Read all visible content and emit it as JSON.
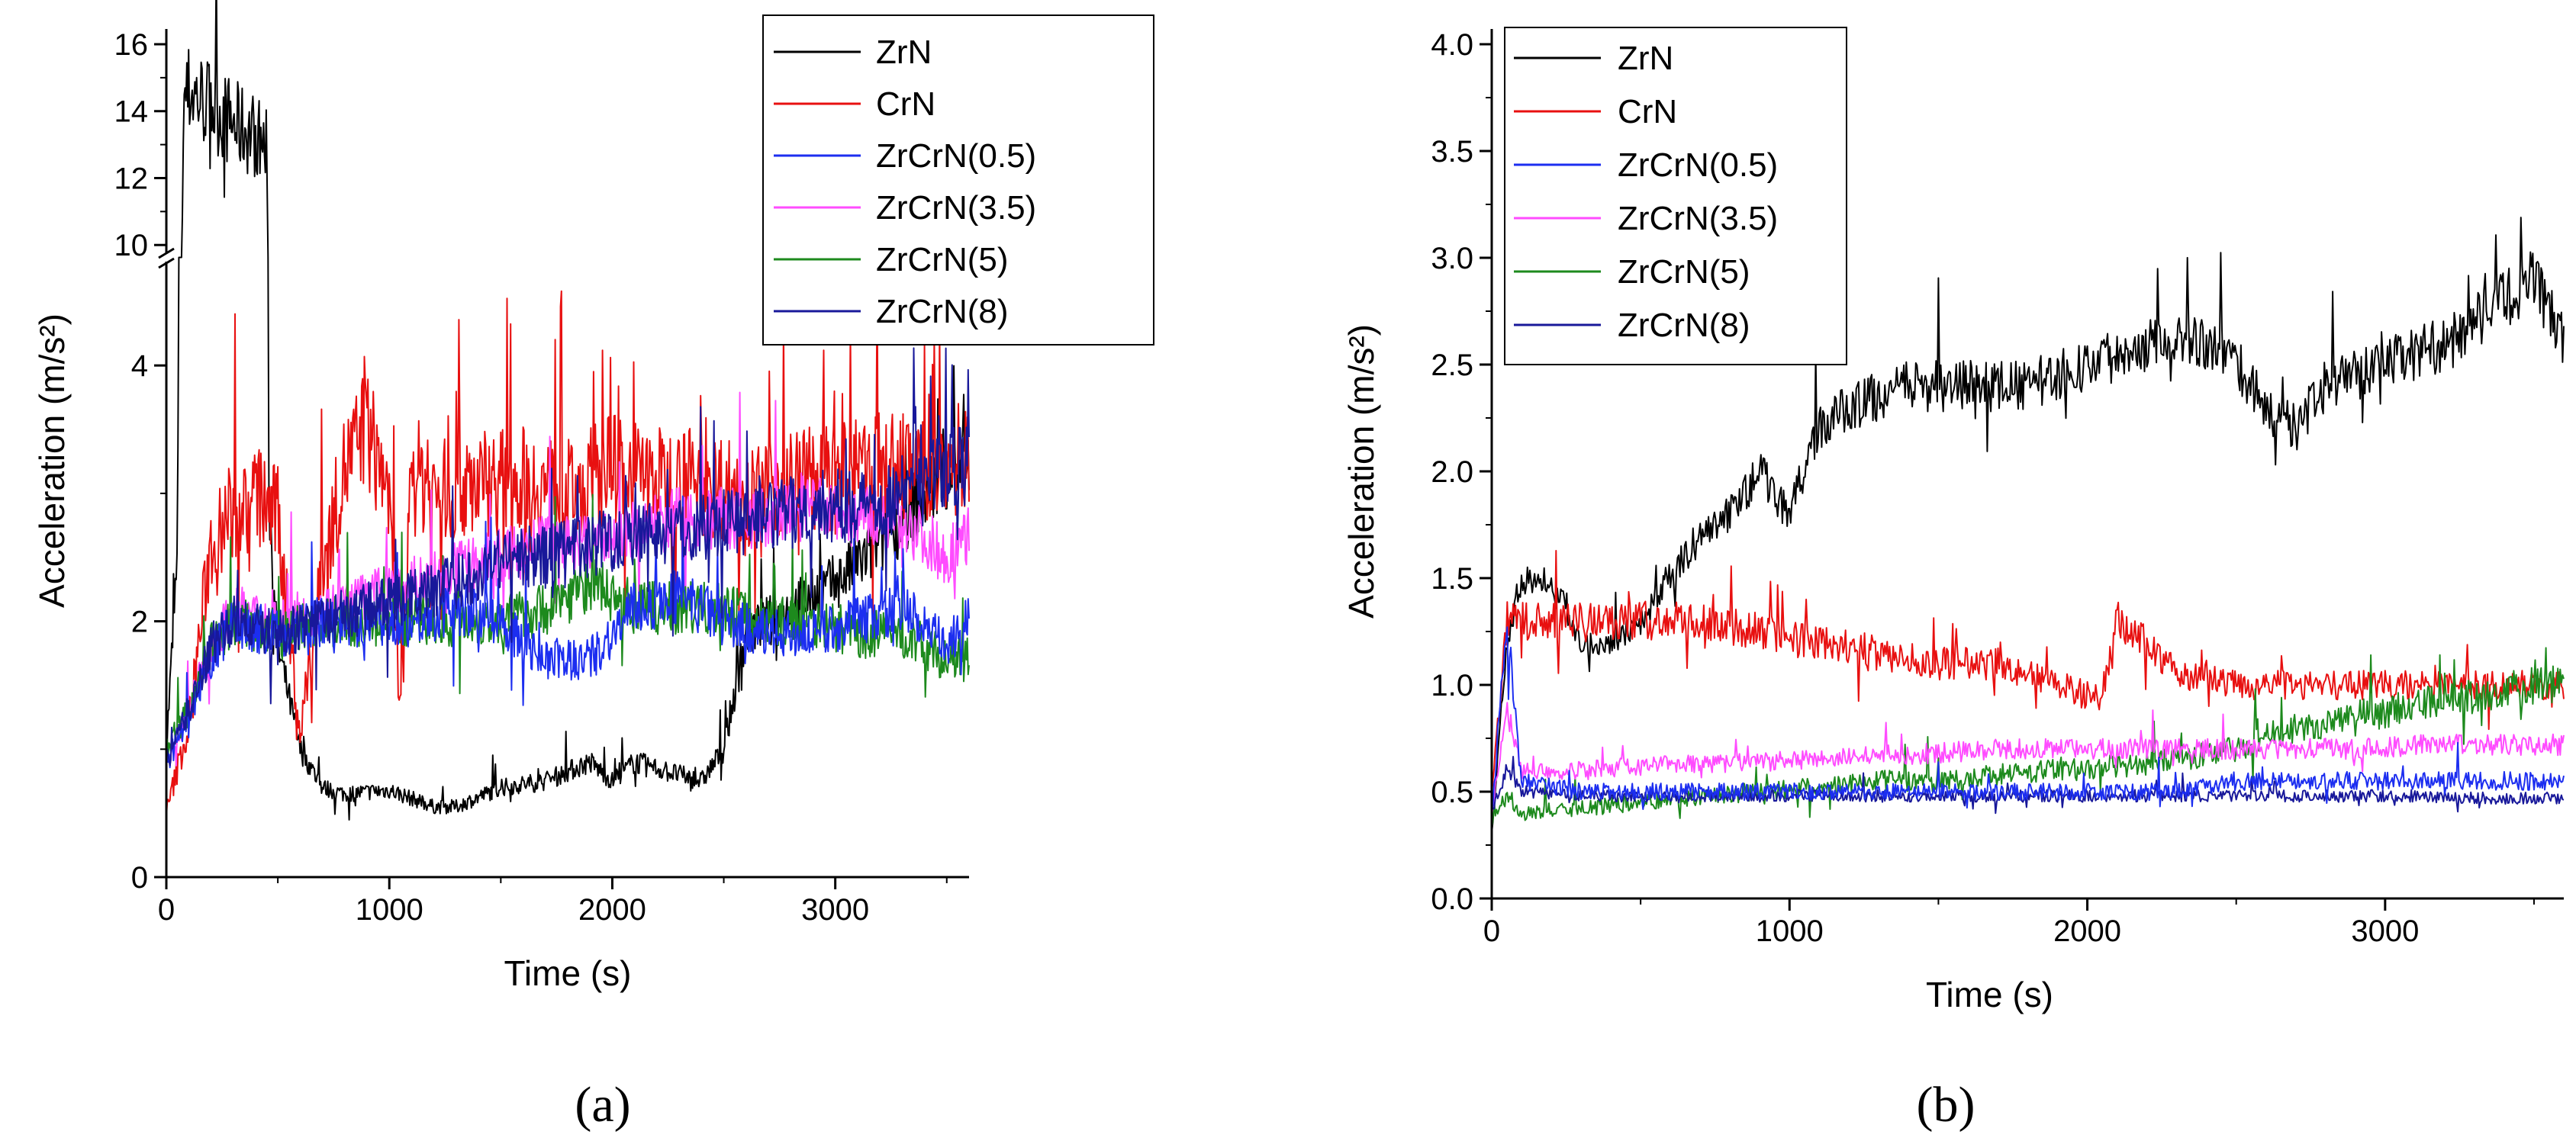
{
  "chart_data": [
    {
      "type": "line",
      "panel_label": "(a)",
      "xlabel": "Time (s)",
      "ylabel": "Acceleration (m/s²)",
      "xlim": [
        0,
        3600
      ],
      "ylim": [
        0,
        16
      ],
      "axis_break": [
        4.8,
        9.8
      ],
      "yticks": [
        0,
        2,
        4,
        10,
        12,
        14,
        16
      ],
      "ytick_labels": [
        "0",
        "2",
        "4",
        "10",
        "12",
        "14",
        "16"
      ],
      "xticks": [
        0,
        1000,
        2000,
        3000
      ],
      "xtick_labels": [
        "0",
        "1000",
        "2000",
        "3000"
      ],
      "legend_position": "top-right",
      "series": [
        {
          "name": "ZrN",
          "color": "#000000",
          "x": [
            0,
            50,
            80,
            100,
            200,
            300,
            400,
            450,
            460,
            500,
            600,
            700,
            800,
            1000,
            1200,
            1300,
            1500,
            1700,
            1900,
            2000,
            2100,
            2200,
            2300,
            2400,
            2500,
            2600,
            2800,
            3000,
            3200,
            3400,
            3600
          ],
          "y": [
            1.0,
            2.5,
            14.5,
            14.6,
            14.2,
            13.6,
            13.3,
            12.8,
            3.0,
            1.8,
            1.0,
            0.7,
            0.65,
            0.68,
            0.55,
            0.55,
            0.7,
            0.75,
            0.9,
            0.75,
            0.9,
            0.85,
            0.8,
            0.75,
            1.0,
            1.9,
            2.1,
            2.3,
            2.6,
            3.0,
            3.3
          ]
        },
        {
          "name": "CrN",
          "color": "#e81010",
          "x": [
            0,
            100,
            200,
            300,
            400,
            500,
            600,
            700,
            800,
            900,
            1000,
            1050,
            1100,
            1200,
            1400,
            1600,
            1800,
            2000,
            2200,
            2400,
            2600,
            2800,
            3000,
            3200,
            3400,
            3600
          ],
          "y": [
            0.5,
            1.2,
            2.6,
            2.8,
            3.0,
            2.8,
            1.1,
            2.4,
            3.2,
            3.5,
            3.0,
            1.2,
            3.2,
            3.0,
            3.1,
            3.1,
            3.0,
            3.2,
            3.1,
            3.1,
            3.0,
            3.1,
            3.1,
            3.2,
            3.2,
            3.3
          ]
        },
        {
          "name": "ZrCrN(0.5)",
          "color": "#1c2ef0",
          "x": [
            0,
            100,
            200,
            300,
            500,
            700,
            900,
            1100,
            1300,
            1500,
            1700,
            1900,
            2100,
            2300,
            2500,
            2700,
            2900,
            3100,
            3300,
            3500,
            3600
          ],
          "y": [
            0.9,
            1.2,
            1.7,
            2.0,
            1.9,
            2.0,
            2.0,
            2.0,
            2.1,
            2.0,
            1.7,
            1.7,
            2.1,
            2.2,
            2.0,
            1.9,
            1.9,
            2.0,
            2.1,
            1.8,
            2.0
          ]
        },
        {
          "name": "ZrCrN(3.5)",
          "color": "#ff4cff",
          "x": [
            0,
            100,
            200,
            300,
            500,
            700,
            900,
            1100,
            1300,
            1500,
            1700,
            1900,
            2100,
            2300,
            2500,
            2700,
            2900,
            3100,
            3300,
            3500,
            3600
          ],
          "y": [
            0.9,
            1.3,
            1.8,
            2.1,
            2.0,
            2.1,
            2.2,
            2.3,
            2.4,
            2.5,
            2.6,
            2.6,
            2.7,
            2.8,
            2.8,
            2.8,
            2.9,
            2.8,
            2.8,
            2.5,
            2.7
          ]
        },
        {
          "name": "ZrCrN(5)",
          "color": "#1d8a1d",
          "x": [
            0,
            100,
            200,
            300,
            500,
            700,
            900,
            1100,
            1300,
            1500,
            1700,
            1900,
            2100,
            2300,
            2500,
            2700,
            2900,
            3100,
            3300,
            3500,
            3600
          ],
          "y": [
            1.0,
            1.3,
            1.8,
            2.0,
            1.9,
            2.0,
            2.0,
            2.0,
            2.0,
            2.0,
            2.1,
            2.3,
            2.1,
            2.1,
            2.1,
            2.0,
            2.0,
            1.9,
            1.9,
            1.7,
            1.7
          ]
        },
        {
          "name": "ZrCrN(8)",
          "color": "#18189a",
          "x": [
            0,
            100,
            200,
            300,
            500,
            700,
            900,
            1100,
            1300,
            1500,
            1700,
            1900,
            2100,
            2300,
            2500,
            2700,
            2900,
            3100,
            3300,
            3500,
            3600
          ],
          "y": [
            0.9,
            1.3,
            1.8,
            2.0,
            1.9,
            2.0,
            2.1,
            2.2,
            2.3,
            2.5,
            2.5,
            2.6,
            2.7,
            2.7,
            2.8,
            2.8,
            2.9,
            2.9,
            3.0,
            3.2,
            3.2
          ]
        }
      ]
    },
    {
      "type": "line",
      "panel_label": "(b)",
      "xlabel": "Time (s)",
      "ylabel": "Acceleration (m/s²)",
      "xlim": [
        0,
        3600
      ],
      "ylim": [
        0,
        4.0
      ],
      "yticks": [
        0,
        0.5,
        1.0,
        1.5,
        2.0,
        2.5,
        3.0,
        3.5,
        4.0
      ],
      "ytick_labels": [
        "0.0",
        "0.5",
        "1.0",
        "1.5",
        "2.0",
        "2.5",
        "3.0",
        "3.5",
        "4.0"
      ],
      "xticks": [
        0,
        1000,
        2000,
        3000
      ],
      "xtick_labels": [
        "0",
        "1000",
        "2000",
        "3000"
      ],
      "legend_position": "top-left",
      "series": [
        {
          "name": "ZrN",
          "color": "#000000",
          "x": [
            0,
            50,
            100,
            200,
            300,
            400,
            500,
            600,
            700,
            800,
            900,
            1000,
            1100,
            1200,
            1300,
            1400,
            1600,
            1800,
            2000,
            2200,
            2300,
            2400,
            2500,
            2600,
            2700,
            2800,
            3000,
            3200,
            3400,
            3500,
            3600
          ],
          "y": [
            0.3,
            1.2,
            1.5,
            1.5,
            1.2,
            1.2,
            1.3,
            1.5,
            1.7,
            1.8,
            2.0,
            1.8,
            2.2,
            2.3,
            2.35,
            2.4,
            2.4,
            2.4,
            2.5,
            2.6,
            2.65,
            2.6,
            2.5,
            2.3,
            2.2,
            2.4,
            2.5,
            2.6,
            2.8,
            2.9,
            2.6
          ]
        },
        {
          "name": "CrN",
          "color": "#e81010",
          "x": [
            0,
            50,
            100,
            300,
            500,
            700,
            900,
            1100,
            1300,
            1500,
            1700,
            1900,
            2000,
            2050,
            2100,
            2200,
            2300,
            2500,
            2700,
            2900,
            3100,
            3300,
            3500,
            3600
          ],
          "y": [
            0.5,
            1.3,
            1.3,
            1.3,
            1.3,
            1.3,
            1.25,
            1.2,
            1.15,
            1.1,
            1.1,
            1.0,
            0.95,
            0.95,
            1.3,
            1.2,
            1.05,
            1.0,
            1.0,
            1.0,
            1.0,
            1.0,
            1.0,
            1.0
          ]
        },
        {
          "name": "ZrCrN(0.5)",
          "color": "#1c2ef0",
          "x": [
            0,
            50,
            100,
            300,
            500,
            700,
            900,
            1100,
            1300,
            1500,
            1700,
            1900,
            2100,
            2300,
            2500,
            2700,
            2900,
            3100,
            3300,
            3500,
            3600
          ],
          "y": [
            0.4,
            1.3,
            0.55,
            0.5,
            0.5,
            0.5,
            0.5,
            0.5,
            0.5,
            0.5,
            0.5,
            0.5,
            0.5,
            0.5,
            0.55,
            0.55,
            0.55,
            0.55,
            0.55,
            0.55,
            0.55
          ]
        },
        {
          "name": "ZrCrN(3.5)",
          "color": "#ff4cff",
          "x": [
            0,
            50,
            100,
            300,
            500,
            700,
            900,
            1100,
            1300,
            1500,
            1700,
            1900,
            2100,
            2300,
            2500,
            2700,
            2900,
            3100,
            3300,
            3500,
            3600
          ],
          "y": [
            0.4,
            0.9,
            0.6,
            0.6,
            0.62,
            0.63,
            0.64,
            0.65,
            0.67,
            0.68,
            0.7,
            0.7,
            0.7,
            0.7,
            0.7,
            0.7,
            0.7,
            0.72,
            0.72,
            0.72,
            0.72
          ]
        },
        {
          "name": "ZrCrN(5)",
          "color": "#1d8a1d",
          "x": [
            0,
            50,
            100,
            300,
            500,
            700,
            900,
            1100,
            1300,
            1500,
            1700,
            1900,
            2100,
            2300,
            2500,
            2700,
            2900,
            3100,
            3300,
            3500,
            3600
          ],
          "y": [
            0.35,
            0.5,
            0.4,
            0.42,
            0.45,
            0.48,
            0.5,
            0.52,
            0.55,
            0.55,
            0.58,
            0.6,
            0.62,
            0.65,
            0.7,
            0.8,
            0.85,
            0.9,
            0.95,
            1.0,
            1.0
          ]
        },
        {
          "name": "ZrCrN(8)",
          "color": "#18189a",
          "x": [
            0,
            50,
            100,
            300,
            500,
            700,
            900,
            1100,
            1300,
            1500,
            1700,
            1900,
            2100,
            2300,
            2500,
            2700,
            2900,
            3100,
            3300,
            3500,
            3600
          ],
          "y": [
            0.4,
            0.6,
            0.5,
            0.48,
            0.48,
            0.48,
            0.48,
            0.48,
            0.48,
            0.48,
            0.48,
            0.48,
            0.48,
            0.48,
            0.48,
            0.48,
            0.48,
            0.48,
            0.47,
            0.47,
            0.47
          ]
        }
      ]
    }
  ]
}
